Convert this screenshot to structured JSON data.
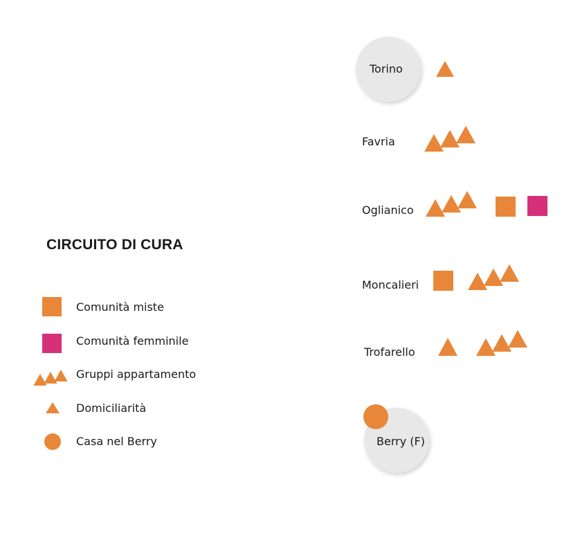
{
  "legend": {
    "title": "CIRCUITO DI CURA",
    "items": [
      {
        "key": "square-orange",
        "label": "Comunità miste"
      },
      {
        "key": "square-pink",
        "label": "Comunità femminile"
      },
      {
        "key": "triangles-group",
        "label": "Gruppi appartamento"
      },
      {
        "key": "triangle-single",
        "label": "Domiciliarità"
      },
      {
        "key": "circle-orange",
        "label": "Casa nel Berry"
      }
    ]
  },
  "places": [
    {
      "name": "Torino",
      "highlighted": true,
      "domiciliarita": 1,
      "gruppi_appartamento": 0,
      "comunita_miste": 0,
      "comunita_femminile": 0,
      "casa_nel_berry": 0
    },
    {
      "name": "Favria",
      "highlighted": false,
      "domiciliarita": 0,
      "gruppi_appartamento": 1,
      "comunita_miste": 0,
      "comunita_femminile": 0,
      "casa_nel_berry": 0
    },
    {
      "name": "Oglianico",
      "highlighted": false,
      "domiciliarita": 0,
      "gruppi_appartamento": 1,
      "comunita_miste": 1,
      "comunita_femminile": 1,
      "casa_nel_berry": 0
    },
    {
      "name": "Moncalieri",
      "highlighted": false,
      "domiciliarita": 0,
      "gruppi_appartamento": 1,
      "comunita_miste": 1,
      "comunita_femminile": 0,
      "casa_nel_berry": 0
    },
    {
      "name": "Trofarello",
      "highlighted": false,
      "domiciliarita": 1,
      "gruppi_appartamento": 1,
      "comunita_miste": 0,
      "comunita_femminile": 0,
      "casa_nel_berry": 0
    },
    {
      "name": "Berry (F)",
      "highlighted": true,
      "domiciliarita": 0,
      "gruppi_appartamento": 0,
      "comunita_miste": 0,
      "comunita_femminile": 0,
      "casa_nel_berry": 1
    }
  ],
  "colors": {
    "orange": "#e8873a",
    "pink": "#d6307a",
    "circle_bg": "#e8e8e8",
    "text": "#1a1a1a"
  }
}
